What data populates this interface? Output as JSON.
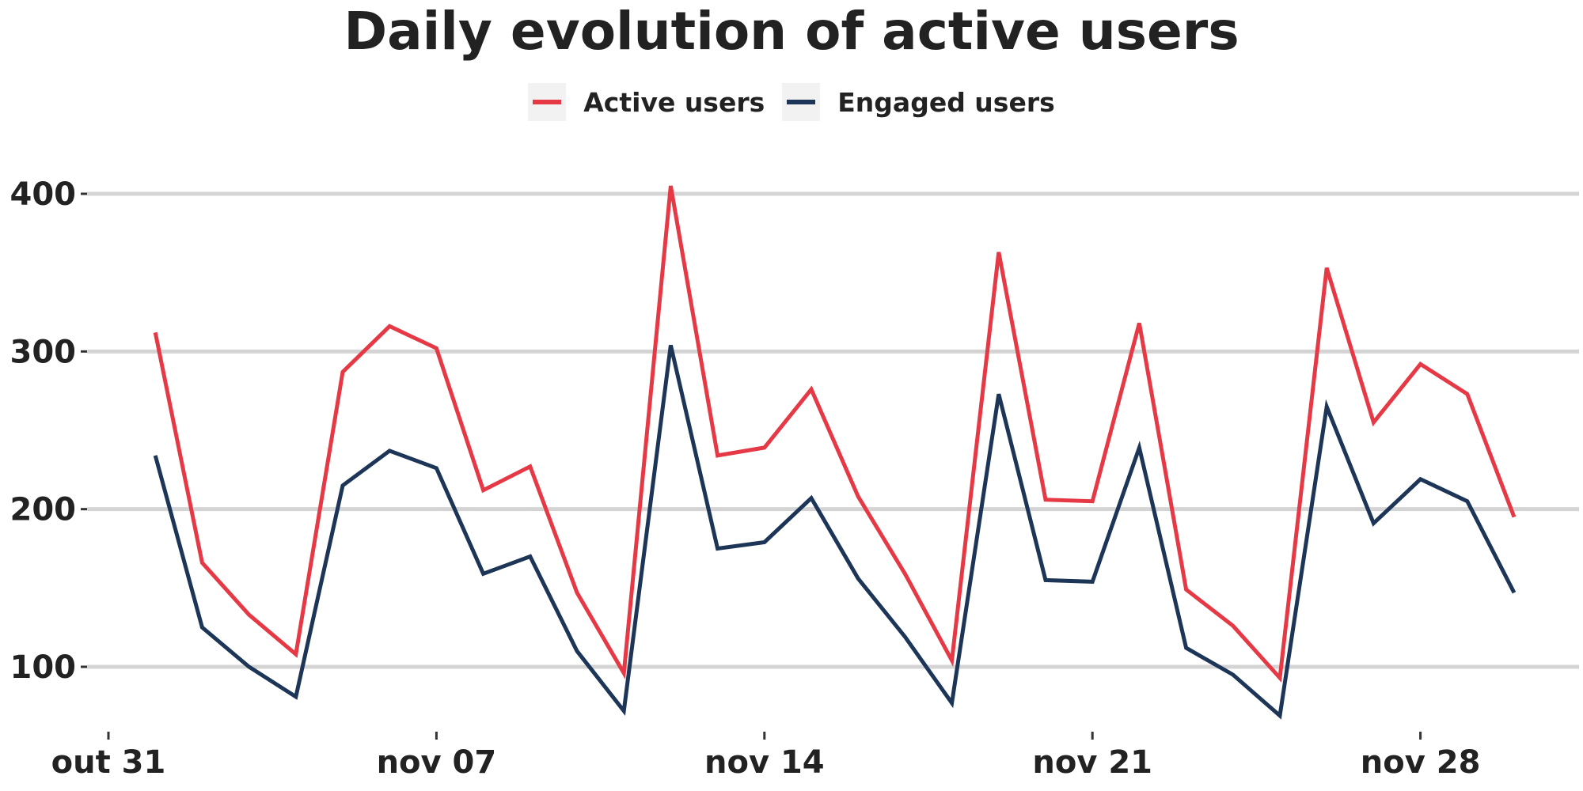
{
  "chart_data": {
    "type": "line",
    "title": "Daily evolution of active users",
    "xlabel": "",
    "ylabel": "",
    "legend_position": "top",
    "grid": "horizontal",
    "ylim": [
      65,
      420
    ],
    "yticks": [
      100,
      200,
      300,
      400
    ],
    "x": [
      "2021-10-31",
      "2021-11-01",
      "2021-11-02",
      "2021-11-03",
      "2021-11-04",
      "2021-11-05",
      "2021-11-06",
      "2021-11-07",
      "2021-11-08",
      "2021-11-09",
      "2021-11-10",
      "2021-11-11",
      "2021-11-12",
      "2021-11-13",
      "2021-11-14",
      "2021-11-15",
      "2021-11-16",
      "2021-11-17",
      "2021-11-18",
      "2021-11-19",
      "2021-11-20",
      "2021-11-21",
      "2021-11-22",
      "2021-11-23",
      "2021-11-24",
      "2021-11-25",
      "2021-11-26",
      "2021-11-27",
      "2021-11-28",
      "2021-11-29",
      "2021-11-30",
      "2021-12-01"
    ],
    "xticks": [
      {
        "label": "out 31",
        "index": 0
      },
      {
        "label": "nov 07",
        "index": 7
      },
      {
        "label": "nov 14",
        "index": 14
      },
      {
        "label": "nov 21",
        "index": 21
      },
      {
        "label": "nov 28",
        "index": 28
      }
    ],
    "series": [
      {
        "name": "Active users",
        "color": "#e63946",
        "values": [
          null,
          312,
          166,
          133,
          108,
          287,
          316,
          302,
          212,
          227,
          147,
          96,
          405,
          234,
          239,
          276,
          208,
          159,
          104,
          363,
          206,
          205,
          318,
          149,
          126,
          93,
          353,
          255,
          292,
          273,
          195,
          null
        ]
      },
      {
        "name": "Engaged users",
        "color": "#1d3557",
        "values": [
          null,
          234,
          125,
          100,
          81,
          215,
          237,
          226,
          159,
          170,
          110,
          72,
          304,
          175,
          179,
          207,
          156,
          119,
          77,
          273,
          155,
          154,
          239,
          112,
          95,
          69,
          265,
          191,
          219,
          205,
          147,
          null
        ]
      }
    ]
  }
}
